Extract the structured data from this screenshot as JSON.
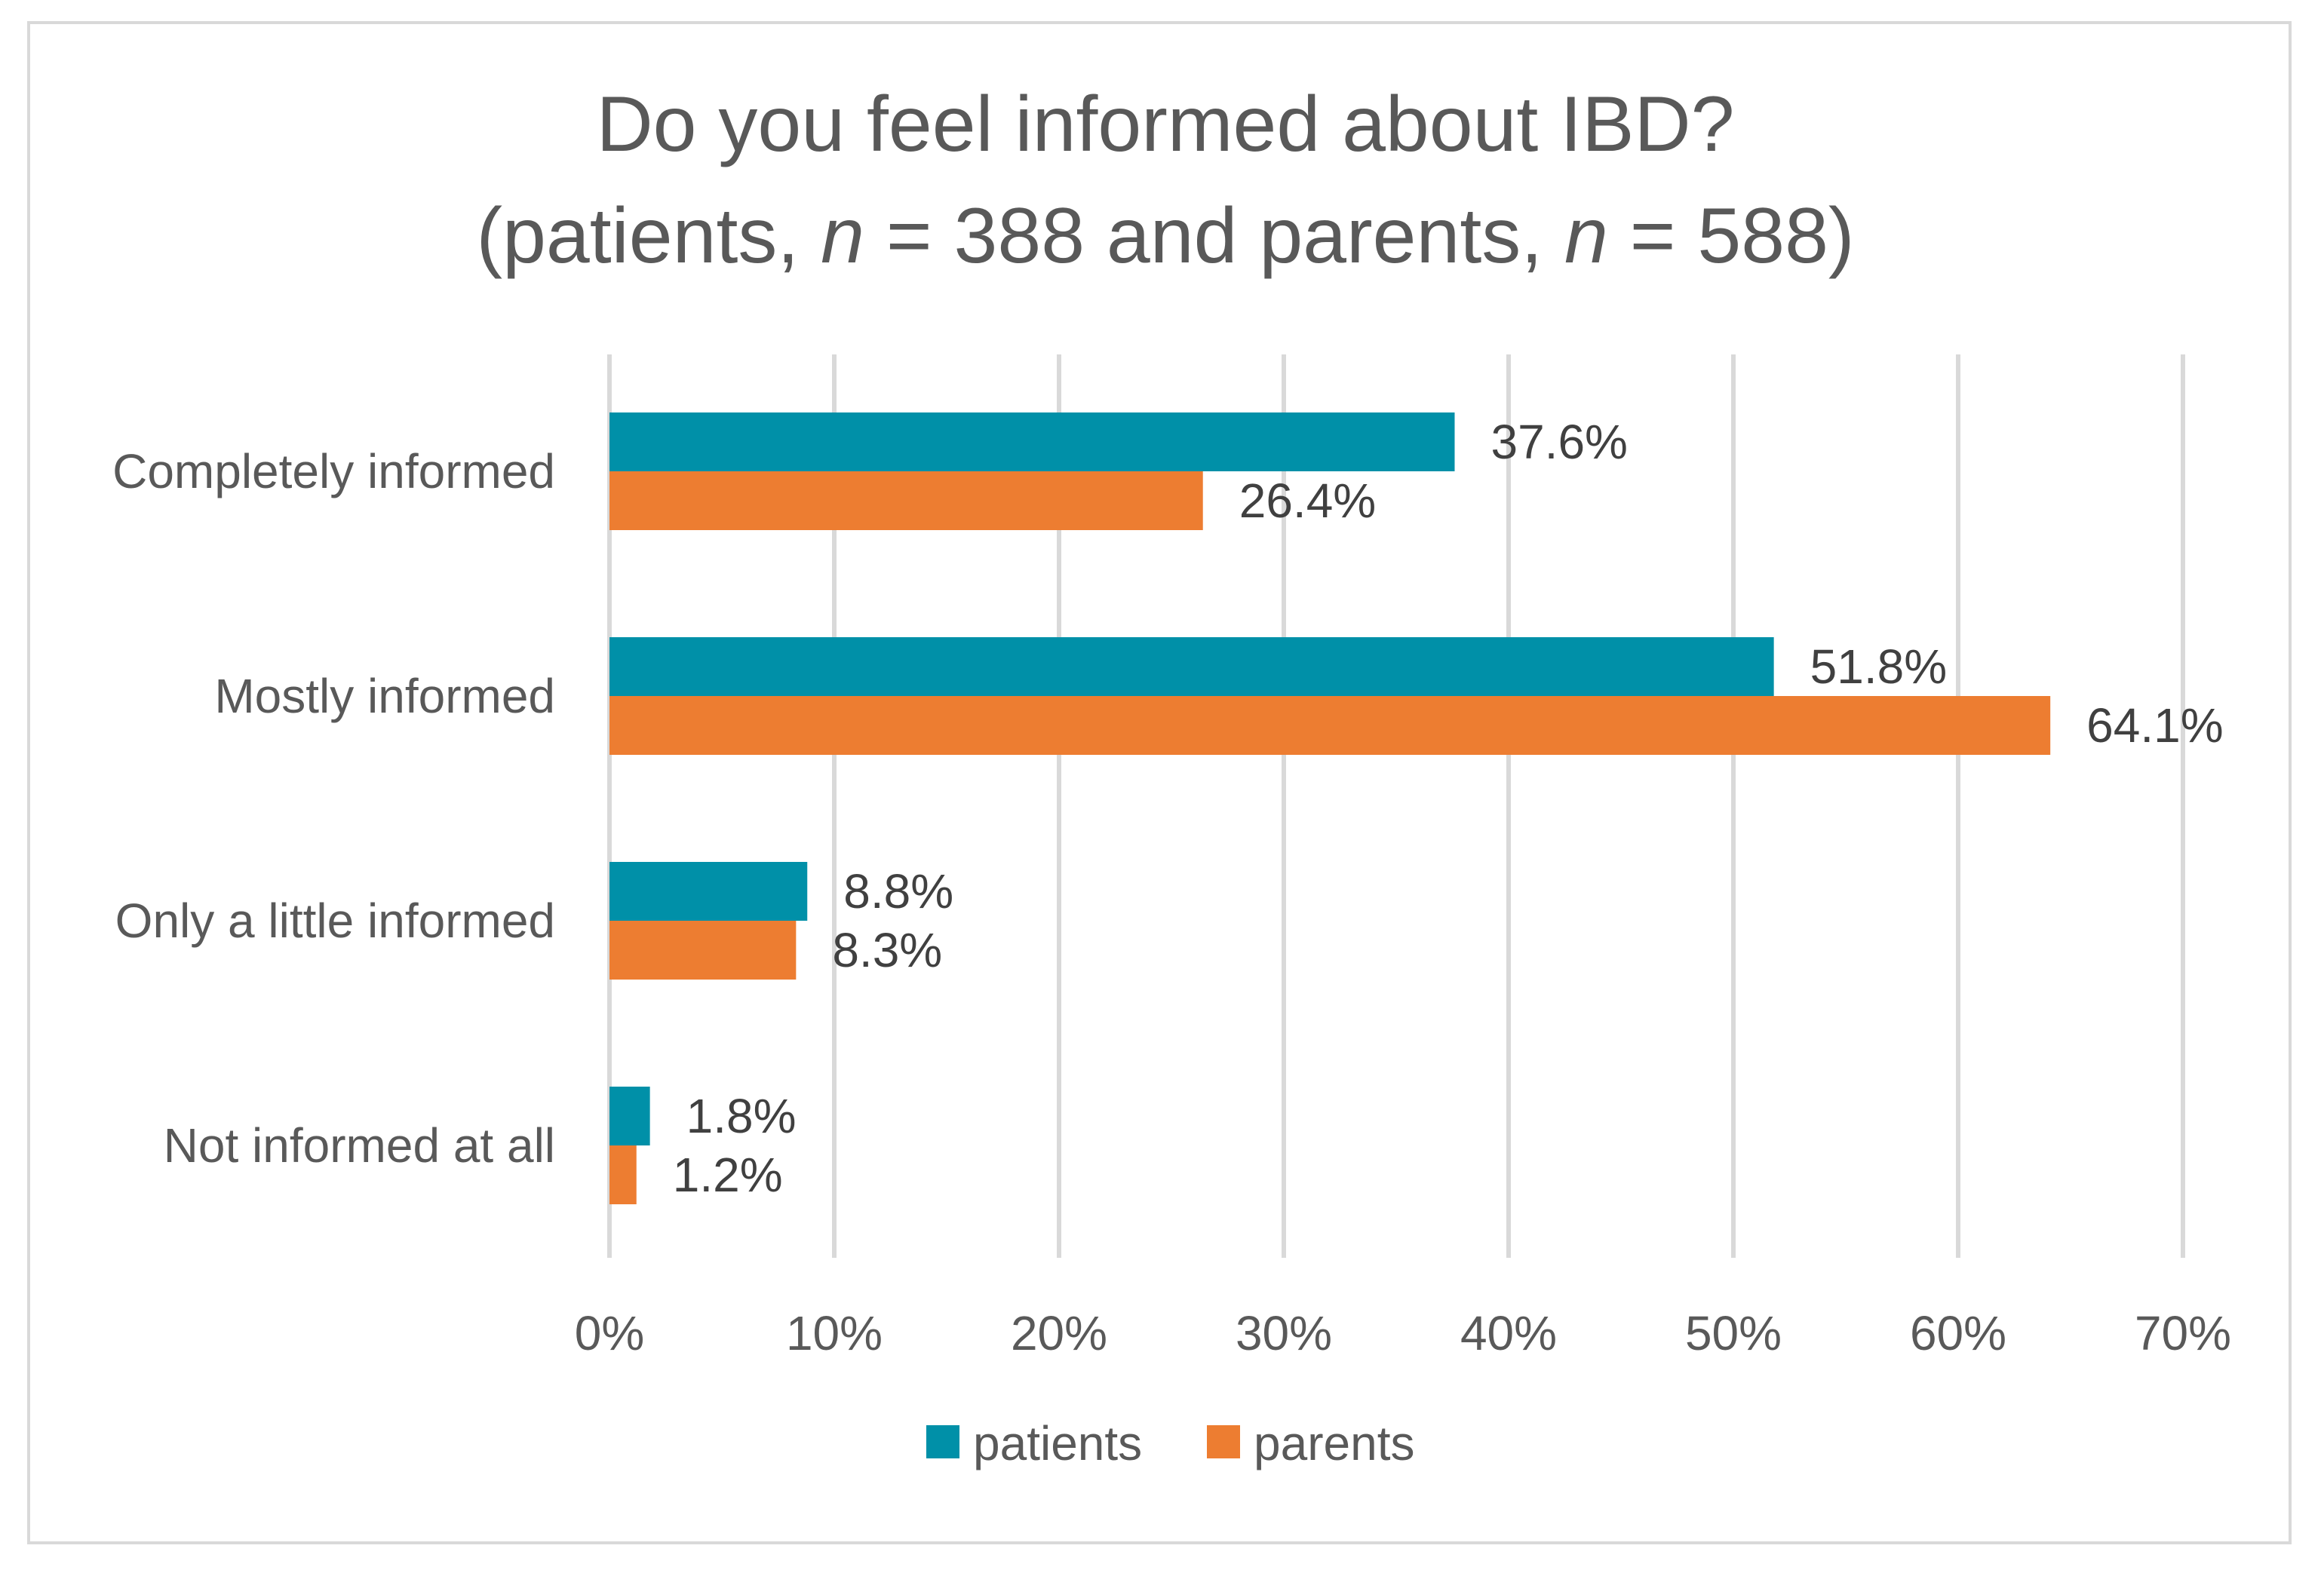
{
  "chart_data": {
    "type": "bar",
    "orientation": "horizontal",
    "title_line1": "Do you feel informed about IBD?",
    "title_line2": {
      "open": "(patients, ",
      "n1_symbol": "n",
      "n1_rest": " = 388 and parents, ",
      "n2_symbol": "n",
      "n2_rest": " = 588)"
    },
    "categories": [
      "Completely informed",
      "Mostly informed",
      "Only a little informed",
      "Not informed at all"
    ],
    "series": [
      {
        "name": "patients",
        "color": "#0090a8",
        "values": [
          37.6,
          51.8,
          8.8,
          1.8
        ],
        "labels": [
          "37.6%",
          "51.8%",
          "8.8%",
          "1.8%"
        ]
      },
      {
        "name": "parents",
        "color": "#ed7d31",
        "values": [
          26.4,
          64.1,
          8.3,
          1.2
        ],
        "labels": [
          "26.4%",
          "64.1%",
          "8.3%",
          "1.2%"
        ]
      }
    ],
    "xlim": [
      0,
      70
    ],
    "xticks": [
      0,
      10,
      20,
      30,
      40,
      50,
      60,
      70
    ],
    "xtick_labels": [
      "0%",
      "10%",
      "20%",
      "30%",
      "40%",
      "50%",
      "60%",
      "70%"
    ],
    "grid": true,
    "legend_position": "bottom"
  }
}
